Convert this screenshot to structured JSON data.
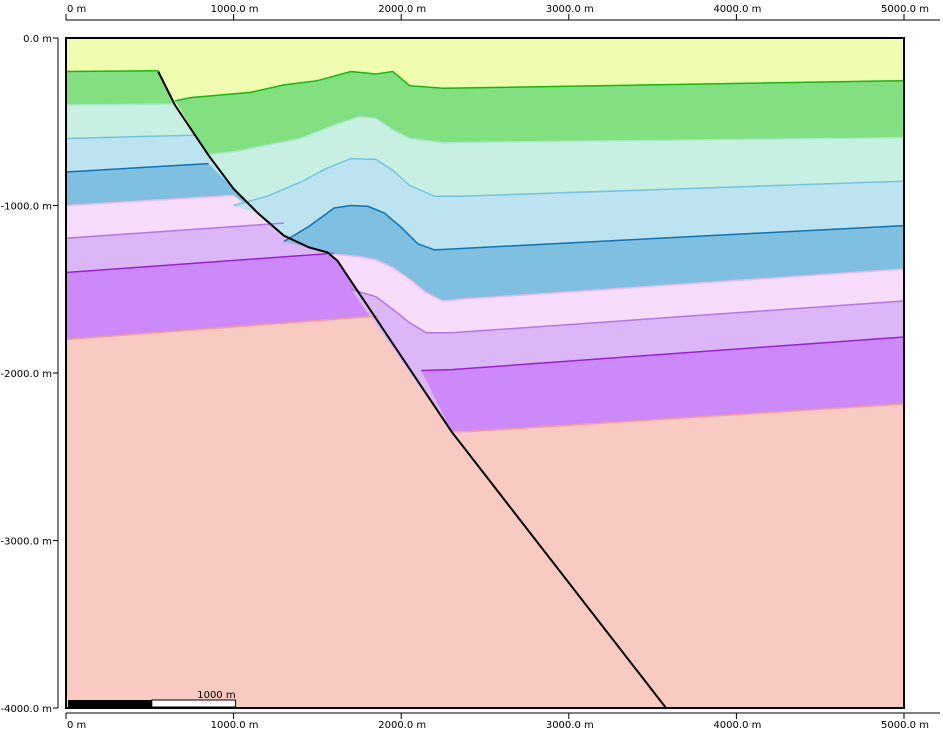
{
  "axes": {
    "top": {
      "ticks": [
        {
          "value": 0,
          "label": "0 m"
        },
        {
          "value": 1000,
          "label": "1000.0 m"
        },
        {
          "value": 2000,
          "label": "2000.0 m"
        },
        {
          "value": 3000,
          "label": "3000.0 m"
        },
        {
          "value": 4000,
          "label": "4000.0 m"
        },
        {
          "value": 5000,
          "label": "5000.0 m"
        }
      ]
    },
    "bottom": {
      "ticks": [
        {
          "value": 0,
          "label": "0 m"
        },
        {
          "value": 1000,
          "label": "1000.0 m"
        },
        {
          "value": 2000,
          "label": "2000.0 m"
        },
        {
          "value": 3000,
          "label": "3000.0 m"
        },
        {
          "value": 4000,
          "label": "4000.0 m"
        },
        {
          "value": 5000,
          "label": "5000.0 m"
        }
      ]
    },
    "left": {
      "ticks": [
        {
          "value": 0,
          "label": "0.0 m"
        },
        {
          "value": -1000,
          "label": "-1000.0 m"
        },
        {
          "value": -2000,
          "label": "-2000.0 m"
        },
        {
          "value": -3000,
          "label": "-3000.0 m"
        },
        {
          "value": -4000,
          "label": "-4000.0 m"
        }
      ]
    },
    "x_range": [
      0,
      5000
    ],
    "z_range": [
      -4000,
      0
    ],
    "grid": true
  },
  "scale_bar": {
    "label": "1000 m",
    "length": 1000
  },
  "colors": {
    "background": "#ffffff",
    "basement": "#f9cac2",
    "basement_top": "#f4a090",
    "purple": "#cd89fa",
    "purple_top": "#9b1fd8",
    "lilac": "#dcb7f7",
    "lilac_top": "#b277e6",
    "pink": "#f7dcfc",
    "pink_top": "#e6b9f0",
    "blue": "#7fbfe0",
    "blue_top": "#0a74b8",
    "lightblue": "#bde2f0",
    "lightblue_top": "#74c3e3",
    "mint": "#c8f0e2",
    "mint_top": "#a8e8d2",
    "green": "#82e080",
    "green_top": "#13b813",
    "cover": "#f0fdb0",
    "cover_top": "#dcf07a",
    "fault": "#000000"
  },
  "section": {
    "fault": [
      [
        550,
        -200
      ],
      [
        650,
        -400
      ],
      [
        850,
        -700
      ],
      [
        1000,
        -900
      ],
      [
        1150,
        -1050
      ],
      [
        1300,
        -1180
      ],
      [
        1450,
        -1250
      ],
      [
        1560,
        -1280
      ],
      [
        1620,
        -1330
      ],
      [
        1700,
        -1450
      ],
      [
        2300,
        -2350
      ],
      [
        3580,
        -4000
      ]
    ],
    "hangingwall": [
      {
        "name": "green",
        "top": [
          [
            650,
            -375
          ],
          [
            750,
            -355
          ],
          [
            1100,
            -325
          ],
          [
            1300,
            -280
          ],
          [
            1500,
            -255
          ],
          [
            1700,
            -200
          ],
          [
            1850,
            -215
          ],
          [
            1950,
            -200
          ],
          [
            2050,
            -285
          ],
          [
            2250,
            -300
          ],
          [
            5000,
            -255
          ]
        ]
      },
      {
        "name": "mint",
        "top": [
          [
            850,
            -695
          ],
          [
            1000,
            -680
          ],
          [
            1200,
            -640
          ],
          [
            1400,
            -600
          ],
          [
            1600,
            -520
          ],
          [
            1750,
            -470
          ],
          [
            1850,
            -480
          ],
          [
            1950,
            -550
          ],
          [
            2050,
            -600
          ],
          [
            2250,
            -625
          ],
          [
            5000,
            -595
          ]
        ]
      },
      {
        "name": "lightblue",
        "top": [
          [
            1000,
            -1000
          ],
          [
            1200,
            -945
          ],
          [
            1400,
            -860
          ],
          [
            1550,
            -780
          ],
          [
            1700,
            -720
          ],
          [
            1850,
            -725
          ],
          [
            1950,
            -790
          ],
          [
            2050,
            -880
          ],
          [
            2200,
            -945
          ],
          [
            2350,
            -945
          ],
          [
            5000,
            -855
          ]
        ]
      },
      {
        "name": "blue",
        "top": [
          [
            1300,
            -1215
          ],
          [
            1450,
            -1125
          ],
          [
            1600,
            -1015
          ],
          [
            1700,
            -1000
          ],
          [
            1800,
            -1005
          ],
          [
            1900,
            -1045
          ],
          [
            2000,
            -1130
          ],
          [
            2100,
            -1230
          ],
          [
            2200,
            -1265
          ],
          [
            5000,
            -1120
          ]
        ]
      },
      {
        "name": "pink",
        "top": [
          [
            1560,
            -1290
          ],
          [
            1650,
            -1295
          ],
          [
            1750,
            -1305
          ],
          [
            1850,
            -1325
          ],
          [
            1950,
            -1370
          ],
          [
            2050,
            -1440
          ],
          [
            2150,
            -1520
          ],
          [
            2250,
            -1570
          ],
          [
            2350,
            -1560
          ],
          [
            5000,
            -1380
          ]
        ]
      },
      {
        "name": "lilac",
        "top": [
          [
            1700,
            -1500
          ],
          [
            1850,
            -1545
          ],
          [
            1950,
            -1620
          ],
          [
            2050,
            -1700
          ],
          [
            2150,
            -1760
          ],
          [
            2300,
            -1760
          ],
          [
            5000,
            -1570
          ]
        ]
      },
      {
        "name": "purple",
        "top": [
          [
            2120,
            -1985
          ],
          [
            2300,
            -1980
          ],
          [
            5000,
            -1785
          ]
        ]
      },
      {
        "name": "basement",
        "top": [
          [
            2300,
            -2350
          ],
          [
            2400,
            -2350
          ],
          [
            5000,
            -2185
          ]
        ]
      }
    ],
    "footwall": [
      {
        "name": "green",
        "top": [
          [
            0,
            -200
          ],
          [
            550,
            -195
          ]
        ]
      },
      {
        "name": "mint",
        "top": [
          [
            0,
            -400
          ],
          [
            650,
            -395
          ]
        ]
      },
      {
        "name": "lightblue",
        "top": [
          [
            0,
            -600
          ],
          [
            780,
            -580
          ]
        ]
      },
      {
        "name": "blue",
        "top": [
          [
            0,
            -800
          ],
          [
            850,
            -750
          ]
        ]
      },
      {
        "name": "pink",
        "top": [
          [
            0,
            -1000
          ],
          [
            1000,
            -940
          ]
        ]
      },
      {
        "name": "lilac",
        "top": [
          [
            0,
            -1195
          ],
          [
            1300,
            -1105
          ]
        ]
      },
      {
        "name": "purple",
        "top": [
          [
            0,
            -1400
          ],
          [
            1600,
            -1285
          ]
        ]
      },
      {
        "name": "basement",
        "top": [
          [
            0,
            -1800
          ],
          [
            1860,
            -1660
          ]
        ]
      }
    ]
  }
}
